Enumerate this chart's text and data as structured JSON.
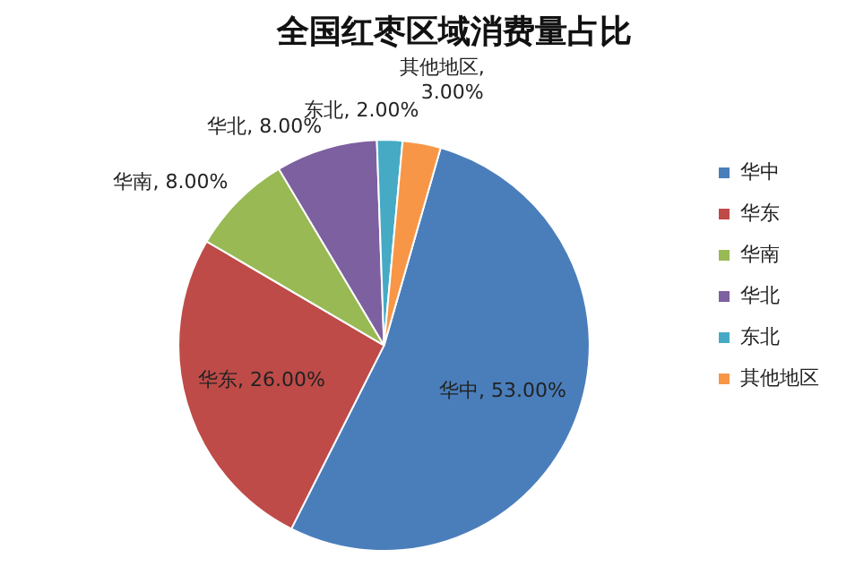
{
  "chart_data": {
    "type": "pie",
    "title": "全国红枣区域消费量占比",
    "categories": [
      "华中",
      "华东",
      "华南",
      "华北",
      "东北",
      "其他地区"
    ],
    "values": [
      53,
      26,
      8,
      8,
      2,
      3
    ],
    "colors": [
      "#4a7ebb",
      "#be4b48",
      "#98b954",
      "#7d60a0",
      "#46aac5",
      "#f79646"
    ],
    "value_labels": [
      "华中, 53.00%",
      "华东, 26.00%",
      "华南, 8.00%",
      "华北, 8.00%",
      "东北, 2.00%",
      "其他地区, 3.00%"
    ],
    "legend": "right"
  }
}
